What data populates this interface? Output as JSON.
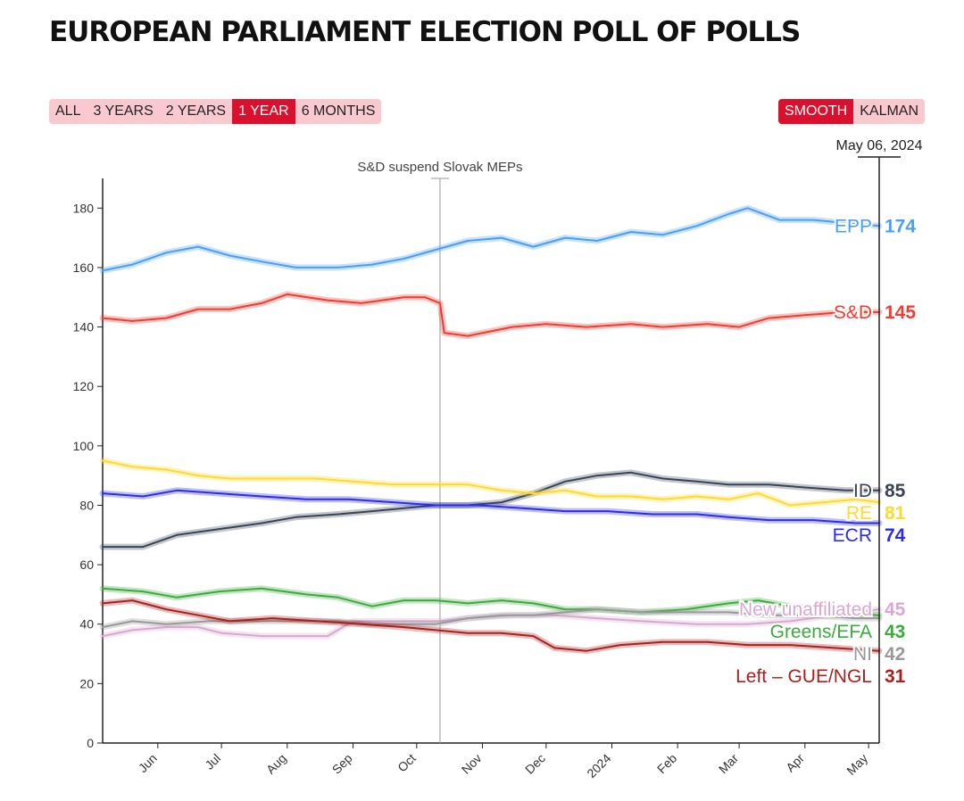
{
  "title": "EUROPEAN PARLIAMENT ELECTION POLL OF POLLS",
  "range_buttons": [
    {
      "label": "ALL",
      "active": false
    },
    {
      "label": "3 YEARS",
      "active": false
    },
    {
      "label": "2 YEARS",
      "active": false
    },
    {
      "label": "1 YEAR",
      "active": true
    },
    {
      "label": "6 MONTHS",
      "active": false
    }
  ],
  "mode_buttons": [
    {
      "label": "SMOOTH",
      "active": true
    },
    {
      "label": "KALMAN",
      "active": false
    }
  ],
  "colors": {
    "accent": "#d9102e",
    "button_bg": "#f9c9cf"
  },
  "chart_data": {
    "type": "line",
    "title": "EUROPEAN PARLIAMENT ELECTION POLL OF POLLS",
    "xlabel": "",
    "ylabel": "",
    "x_range": [
      "2023-05-06",
      "2024-05-06"
    ],
    "ylim": [
      0,
      190
    ],
    "y_ticks": [
      0,
      20,
      40,
      60,
      80,
      100,
      120,
      140,
      160,
      180
    ],
    "x_ticks": [
      {
        "date": "2023-06-01",
        "label": "Jun"
      },
      {
        "date": "2023-07-01",
        "label": "Jul"
      },
      {
        "date": "2023-08-01",
        "label": "Aug"
      },
      {
        "date": "2023-09-01",
        "label": "Sep"
      },
      {
        "date": "2023-10-01",
        "label": "Oct"
      },
      {
        "date": "2023-11-01",
        "label": "Nov"
      },
      {
        "date": "2023-12-01",
        "label": "Dec"
      },
      {
        "date": "2024-01-01",
        "label": "2024"
      },
      {
        "date": "2024-02-01",
        "label": "Feb"
      },
      {
        "date": "2024-03-01",
        "label": "Mar"
      },
      {
        "date": "2024-04-01",
        "label": "Apr"
      },
      {
        "date": "2024-05-01",
        "label": "May"
      }
    ],
    "current_date_label": "May 06, 2024",
    "annotation": {
      "date": "2023-10-12",
      "text": "S&D suspend Slovak MEPs"
    },
    "grid": false,
    "series": [
      {
        "name": "EPP",
        "color": "#4a9ff5",
        "latest": 174,
        "points": [
          [
            "2023-05-06",
            159
          ],
          [
            "2023-05-20",
            161
          ],
          [
            "2023-06-05",
            165
          ],
          [
            "2023-06-20",
            167
          ],
          [
            "2023-07-05",
            164
          ],
          [
            "2023-07-20",
            162
          ],
          [
            "2023-08-05",
            160
          ],
          [
            "2023-08-25",
            160
          ],
          [
            "2023-09-10",
            161
          ],
          [
            "2023-09-25",
            163
          ],
          [
            "2023-10-10",
            166
          ],
          [
            "2023-10-25",
            169
          ],
          [
            "2023-11-10",
            170
          ],
          [
            "2023-11-25",
            167
          ],
          [
            "2023-12-10",
            170
          ],
          [
            "2023-12-25",
            169
          ],
          [
            "2024-01-10",
            172
          ],
          [
            "2024-01-25",
            171
          ],
          [
            "2024-02-10",
            174
          ],
          [
            "2024-02-25",
            178
          ],
          [
            "2024-03-05",
            180
          ],
          [
            "2024-03-20",
            176
          ],
          [
            "2024-04-05",
            176
          ],
          [
            "2024-04-20",
            175
          ],
          [
            "2024-05-06",
            174
          ]
        ]
      },
      {
        "name": "S&D",
        "color": "#f03c32",
        "latest": 145,
        "points": [
          [
            "2023-05-06",
            143
          ],
          [
            "2023-05-20",
            142
          ],
          [
            "2023-06-05",
            143
          ],
          [
            "2023-06-20",
            146
          ],
          [
            "2023-07-05",
            146
          ],
          [
            "2023-07-20",
            148
          ],
          [
            "2023-08-01",
            151
          ],
          [
            "2023-08-20",
            149
          ],
          [
            "2023-09-05",
            148
          ],
          [
            "2023-09-25",
            150
          ],
          [
            "2023-10-05",
            150
          ],
          [
            "2023-10-12",
            148
          ],
          [
            "2023-10-14",
            138
          ],
          [
            "2023-10-25",
            137
          ],
          [
            "2023-11-15",
            140
          ],
          [
            "2023-12-01",
            141
          ],
          [
            "2023-12-20",
            140
          ],
          [
            "2024-01-10",
            141
          ],
          [
            "2024-01-25",
            140
          ],
          [
            "2024-02-15",
            141
          ],
          [
            "2024-03-01",
            140
          ],
          [
            "2024-03-15",
            143
          ],
          [
            "2024-04-01",
            144
          ],
          [
            "2024-04-20",
            145
          ],
          [
            "2024-05-06",
            145
          ]
        ]
      },
      {
        "name": "ID",
        "color": "#3a4457",
        "latest": 85,
        "points": [
          [
            "2023-05-06",
            66
          ],
          [
            "2023-05-25",
            66
          ],
          [
            "2023-06-10",
            70
          ],
          [
            "2023-06-30",
            72
          ],
          [
            "2023-07-20",
            74
          ],
          [
            "2023-08-05",
            76
          ],
          [
            "2023-08-25",
            77
          ],
          [
            "2023-09-10",
            78
          ],
          [
            "2023-09-25",
            79
          ],
          [
            "2023-10-10",
            80
          ],
          [
            "2023-10-25",
            80
          ],
          [
            "2023-11-10",
            81
          ],
          [
            "2023-11-25",
            84
          ],
          [
            "2023-12-10",
            88
          ],
          [
            "2023-12-25",
            90
          ],
          [
            "2024-01-10",
            91
          ],
          [
            "2024-01-25",
            89
          ],
          [
            "2024-02-10",
            88
          ],
          [
            "2024-02-25",
            87
          ],
          [
            "2024-03-15",
            87
          ],
          [
            "2024-04-01",
            86
          ],
          [
            "2024-04-20",
            85
          ],
          [
            "2024-05-06",
            85
          ]
        ]
      },
      {
        "name": "RE",
        "color": "#ffd92e",
        "latest": 81,
        "points": [
          [
            "2023-05-06",
            95
          ],
          [
            "2023-05-20",
            93
          ],
          [
            "2023-06-05",
            92
          ],
          [
            "2023-06-20",
            90
          ],
          [
            "2023-07-05",
            89
          ],
          [
            "2023-07-25",
            89
          ],
          [
            "2023-08-15",
            89
          ],
          [
            "2023-09-01",
            88
          ],
          [
            "2023-09-20",
            87
          ],
          [
            "2023-10-05",
            87
          ],
          [
            "2023-10-25",
            87
          ],
          [
            "2023-11-10",
            85
          ],
          [
            "2023-11-25",
            84
          ],
          [
            "2023-12-10",
            85
          ],
          [
            "2023-12-25",
            83
          ],
          [
            "2024-01-10",
            83
          ],
          [
            "2024-01-25",
            82
          ],
          [
            "2024-02-10",
            83
          ],
          [
            "2024-02-25",
            82
          ],
          [
            "2024-03-10",
            84
          ],
          [
            "2024-03-25",
            80
          ],
          [
            "2024-04-10",
            81
          ],
          [
            "2024-04-25",
            82
          ],
          [
            "2024-05-06",
            81
          ]
        ]
      },
      {
        "name": "ECR",
        "color": "#2b2de8",
        "latest": 74,
        "points": [
          [
            "2023-05-06",
            84
          ],
          [
            "2023-05-25",
            83
          ],
          [
            "2023-06-10",
            85
          ],
          [
            "2023-06-30",
            84
          ],
          [
            "2023-07-20",
            83
          ],
          [
            "2023-08-10",
            82
          ],
          [
            "2023-08-30",
            82
          ],
          [
            "2023-09-20",
            81
          ],
          [
            "2023-10-10",
            80
          ],
          [
            "2023-10-30",
            80
          ],
          [
            "2023-11-20",
            79
          ],
          [
            "2023-12-10",
            78
          ],
          [
            "2023-12-30",
            78
          ],
          [
            "2024-01-20",
            77
          ],
          [
            "2024-02-10",
            77
          ],
          [
            "2024-02-25",
            76
          ],
          [
            "2024-03-15",
            75
          ],
          [
            "2024-04-05",
            75
          ],
          [
            "2024-04-25",
            74
          ],
          [
            "2024-05-06",
            74
          ]
        ]
      },
      {
        "name": "New unaffiliated",
        "color": "#d9a8d0",
        "latest": 45,
        "points": [
          [
            "2023-05-06",
            36
          ],
          [
            "2023-05-20",
            38
          ],
          [
            "2023-06-05",
            39
          ],
          [
            "2023-06-20",
            39
          ],
          [
            "2023-07-01",
            37
          ],
          [
            "2023-07-20",
            36
          ],
          [
            "2023-08-20",
            36
          ],
          [
            "2023-09-01",
            41
          ],
          [
            "2023-09-25",
            41
          ],
          [
            "2023-10-12",
            41
          ],
          [
            "2023-10-25",
            42
          ],
          [
            "2023-11-15",
            43
          ],
          [
            "2023-12-05",
            43
          ],
          [
            "2023-12-25",
            42
          ],
          [
            "2024-01-15",
            41
          ],
          [
            "2024-02-10",
            40
          ],
          [
            "2024-03-05",
            40
          ],
          [
            "2024-03-25",
            41
          ],
          [
            "2024-04-15",
            43
          ],
          [
            "2024-05-06",
            45
          ]
        ]
      },
      {
        "name": "Greens/EFA",
        "color": "#3daa3d",
        "latest": 43,
        "points": [
          [
            "2023-05-06",
            52
          ],
          [
            "2023-05-25",
            51
          ],
          [
            "2023-06-10",
            49
          ],
          [
            "2023-06-30",
            51
          ],
          [
            "2023-07-20",
            52
          ],
          [
            "2023-08-10",
            50
          ],
          [
            "2023-08-25",
            49
          ],
          [
            "2023-09-10",
            46
          ],
          [
            "2023-09-25",
            48
          ],
          [
            "2023-10-10",
            48
          ],
          [
            "2023-10-25",
            47
          ],
          [
            "2023-11-10",
            48
          ],
          [
            "2023-11-25",
            47
          ],
          [
            "2023-12-10",
            45
          ],
          [
            "2023-12-25",
            45
          ],
          [
            "2024-01-15",
            44
          ],
          [
            "2024-02-05",
            45
          ],
          [
            "2024-02-25",
            47
          ],
          [
            "2024-03-10",
            48
          ],
          [
            "2024-03-25",
            46
          ],
          [
            "2024-04-15",
            44
          ],
          [
            "2024-05-06",
            43
          ]
        ]
      },
      {
        "name": "NI",
        "color": "#999999",
        "latest": 42,
        "points": [
          [
            "2023-05-06",
            39
          ],
          [
            "2023-05-20",
            41
          ],
          [
            "2023-06-05",
            40
          ],
          [
            "2023-06-25",
            41
          ],
          [
            "2023-07-15",
            41
          ],
          [
            "2023-08-05",
            41
          ],
          [
            "2023-08-25",
            41
          ],
          [
            "2023-09-10",
            40
          ],
          [
            "2023-09-25",
            40
          ],
          [
            "2023-10-10",
            40
          ],
          [
            "2023-10-25",
            42
          ],
          [
            "2023-11-10",
            43
          ],
          [
            "2023-11-25",
            43
          ],
          [
            "2023-12-10",
            44
          ],
          [
            "2023-12-25",
            45
          ],
          [
            "2024-01-15",
            44
          ],
          [
            "2024-02-05",
            44
          ],
          [
            "2024-02-25",
            44
          ],
          [
            "2024-03-15",
            43
          ],
          [
            "2024-04-05",
            43
          ],
          [
            "2024-04-25",
            42
          ],
          [
            "2024-05-06",
            42
          ]
        ]
      },
      {
        "name": "Left – GUE/NGL",
        "color": "#a8211e",
        "latest": 31,
        "points": [
          [
            "2023-05-06",
            47
          ],
          [
            "2023-05-20",
            48
          ],
          [
            "2023-06-05",
            45
          ],
          [
            "2023-06-20",
            43
          ],
          [
            "2023-07-05",
            41
          ],
          [
            "2023-07-25",
            42
          ],
          [
            "2023-08-15",
            41
          ],
          [
            "2023-09-05",
            40
          ],
          [
            "2023-09-25",
            39
          ],
          [
            "2023-10-10",
            38
          ],
          [
            "2023-10-25",
            37
          ],
          [
            "2023-11-10",
            37
          ],
          [
            "2023-11-25",
            36
          ],
          [
            "2023-12-05",
            32
          ],
          [
            "2023-12-20",
            31
          ],
          [
            "2024-01-05",
            33
          ],
          [
            "2024-01-25",
            34
          ],
          [
            "2024-02-15",
            34
          ],
          [
            "2024-03-05",
            33
          ],
          [
            "2024-03-25",
            33
          ],
          [
            "2024-04-15",
            32
          ],
          [
            "2024-05-06",
            31
          ]
        ]
      }
    ]
  }
}
